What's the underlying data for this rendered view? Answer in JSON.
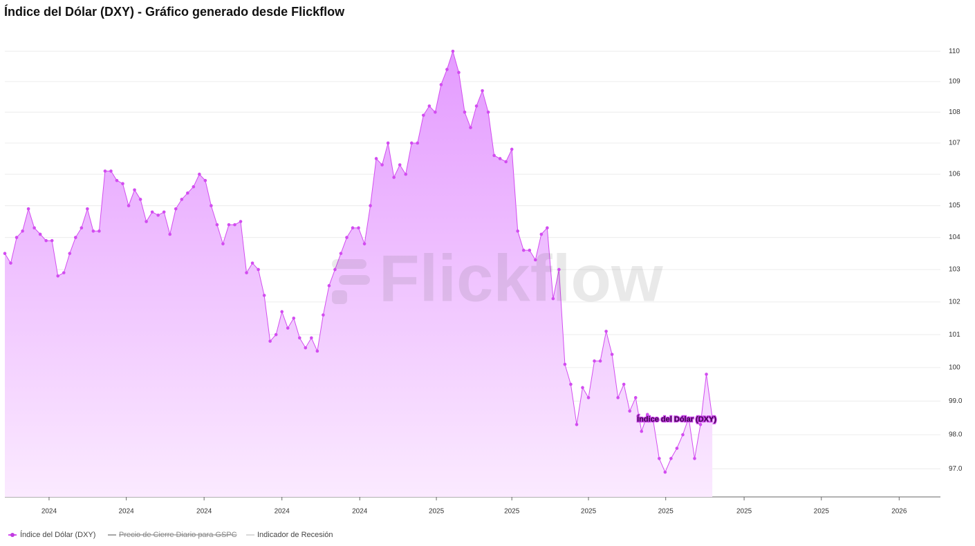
{
  "chart_data": {
    "type": "area",
    "title": "Índice del Dólar (DXY) - Gráfico generado desde Flickflow",
    "watermark": "Flickflow",
    "annotation": "Índice del Dólar (DXY)",
    "series": [
      {
        "name": "Índice del Dólar (DXY)",
        "color": "#d24cf0",
        "values": [
          103.5,
          103.2,
          104.0,
          104.2,
          104.9,
          104.3,
          104.1,
          103.9,
          103.9,
          102.8,
          102.9,
          103.5,
          104.0,
          104.3,
          104.9,
          104.2,
          104.2,
          106.1,
          106.1,
          105.8,
          105.7,
          105.0,
          105.5,
          105.2,
          104.5,
          104.8,
          104.7,
          104.8,
          104.1,
          104.9,
          105.2,
          105.4,
          105.6,
          106.0,
          105.8,
          105.0,
          104.4,
          103.8,
          104.4,
          104.4,
          104.5,
          102.9,
          103.2,
          103.0,
          102.2,
          100.8,
          101.0,
          101.7,
          101.2,
          101.5,
          100.9,
          100.6,
          100.9,
          100.5,
          101.6,
          102.5,
          103.0,
          103.5,
          104.0,
          104.3,
          104.3,
          103.8,
          105.0,
          106.5,
          106.3,
          107.0,
          105.9,
          106.3,
          106.0,
          107.0,
          107.0,
          107.9,
          108.2,
          108.0,
          108.9,
          109.4,
          110.0,
          109.3,
          108.0,
          107.5,
          108.2,
          108.7,
          108.0,
          106.6,
          106.5,
          106.4,
          106.8,
          104.2,
          103.6,
          103.6,
          103.3,
          104.1,
          104.3,
          102.1,
          103.0,
          100.1,
          99.5,
          98.3,
          99.4,
          99.1,
          100.2,
          100.2,
          101.1,
          100.4,
          99.1,
          99.5,
          98.7,
          99.1,
          98.1,
          98.6,
          98.4,
          97.3,
          96.9,
          97.3,
          97.6,
          98.0,
          98.5,
          97.3,
          98.3,
          99.8,
          98.5
        ]
      }
    ],
    "inactive_legend": [
      "Precio de Cierre Diario para GSPC",
      "Indicador de Recesión"
    ],
    "log_y": true,
    "grid": true,
    "ylim": [
      96.18,
      110.44
    ],
    "yticks": [
      {
        "value": 97,
        "label": "97.0"
      },
      {
        "value": 98,
        "label": "98.0"
      },
      {
        "value": 99,
        "label": "99.0"
      },
      100,
      101,
      102,
      103,
      104,
      105,
      106,
      107,
      108,
      109,
      110
    ],
    "xlim": [
      0,
      158.7
    ],
    "xticks": [
      {
        "value": 7.5,
        "label": "2024"
      },
      {
        "value": 20.6,
        "label": "2024"
      },
      {
        "value": 33.8,
        "label": "2024"
      },
      {
        "value": 47.0,
        "label": "2024"
      },
      {
        "value": 60.2,
        "label": "2024"
      },
      {
        "value": 73.2,
        "label": "2025"
      },
      {
        "value": 86.0,
        "label": "2025"
      },
      {
        "value": 99.0,
        "label": "2025"
      },
      {
        "value": 112.1,
        "label": "2025"
      },
      {
        "value": 125.4,
        "label": "2025"
      },
      {
        "value": 138.5,
        "label": "2025"
      },
      {
        "value": 151.7,
        "label": "2026"
      }
    ]
  }
}
